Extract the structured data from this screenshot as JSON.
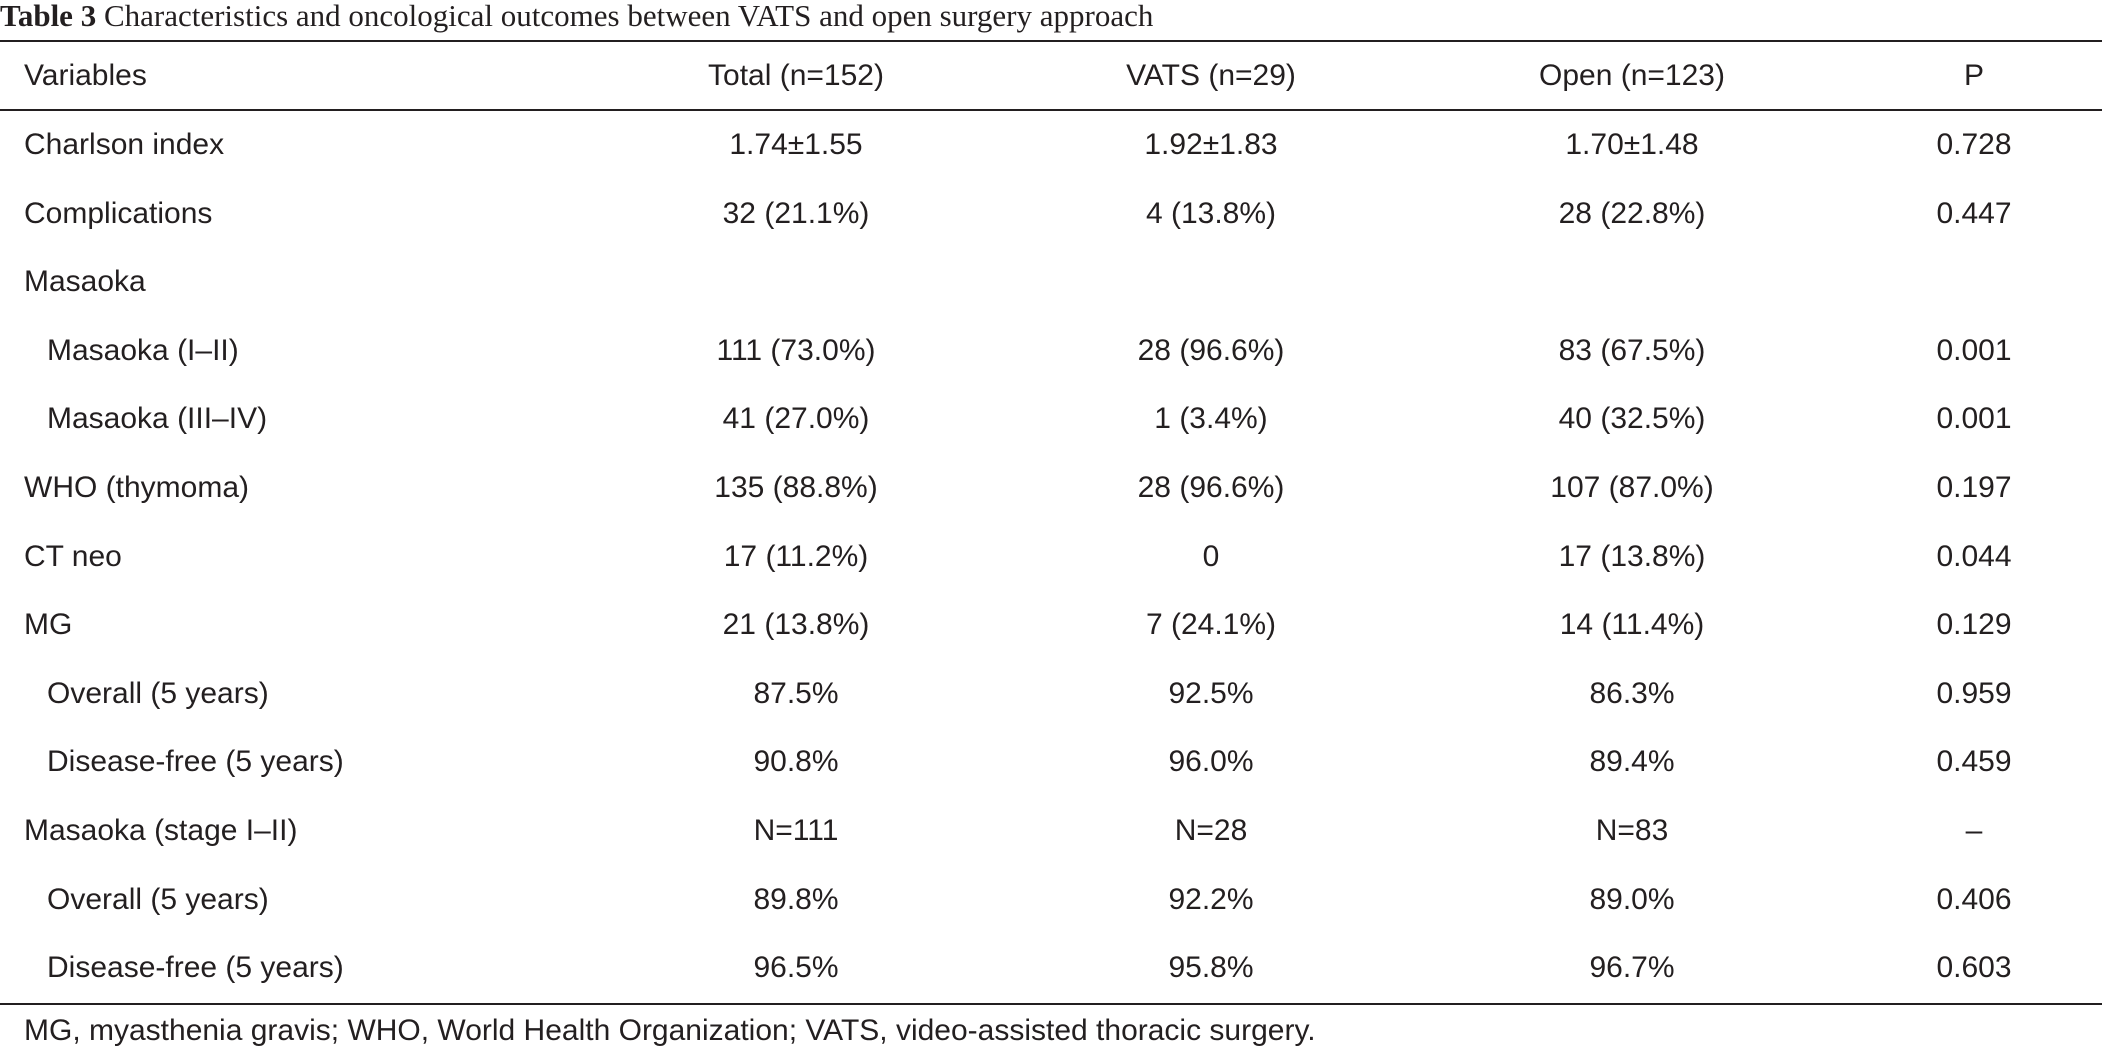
{
  "title": {
    "label": "Table 3",
    "text": " Characteristics and oncological outcomes between VATS and open surgery approach"
  },
  "header": {
    "variables": "Variables",
    "total": "Total (n=152)",
    "vats": "VATS (n=29)",
    "open": "Open (n=123)",
    "p": "P"
  },
  "rows": [
    {
      "variable": "Charlson index",
      "total": "1.74±1.55",
      "vats": "1.92±1.83",
      "open": "1.70±1.48",
      "p": "0.728",
      "indent": false
    },
    {
      "variable": "Complications",
      "total": "32 (21.1%)",
      "vats": "4 (13.8%)",
      "open": "28 (22.8%)",
      "p": "0.447",
      "indent": false
    },
    {
      "variable": "Masaoka",
      "total": "",
      "vats": "",
      "open": "",
      "p": "",
      "indent": false
    },
    {
      "variable": "Masaoka (I–II)",
      "total": "111 (73.0%)",
      "vats": "28 (96.6%)",
      "open": "83 (67.5%)",
      "p": "0.001",
      "indent": true
    },
    {
      "variable": "Masaoka (III–IV)",
      "total": "41 (27.0%)",
      "vats": "1 (3.4%)",
      "open": "40 (32.5%)",
      "p": "0.001",
      "indent": true
    },
    {
      "variable": "WHO (thymoma)",
      "total": "135 (88.8%)",
      "vats": "28 (96.6%)",
      "open": "107 (87.0%)",
      "p": "0.197",
      "indent": false
    },
    {
      "variable": "CT neo",
      "total": "17 (11.2%)",
      "vats": "0",
      "open": "17 (13.8%)",
      "p": "0.044",
      "indent": false
    },
    {
      "variable": "MG",
      "total": "21 (13.8%)",
      "vats": "7 (24.1%)",
      "open": "14 (11.4%)",
      "p": "0.129",
      "indent": false
    },
    {
      "variable": "Overall (5 years)",
      "total": "87.5%",
      "vats": "92.5%",
      "open": "86.3%",
      "p": "0.959",
      "indent": true
    },
    {
      "variable": "Disease-free (5 years)",
      "total": "90.8%",
      "vats": "96.0%",
      "open": "89.4%",
      "p": "0.459",
      "indent": true
    },
    {
      "variable": "Masaoka (stage I–II)",
      "total": "N=111",
      "vats": "N=28",
      "open": "N=83",
      "p": "–",
      "indent": false
    },
    {
      "variable": "Overall (5 years)",
      "total": "89.8%",
      "vats": "92.2%",
      "open": "89.0%",
      "p": "0.406",
      "indent": true
    },
    {
      "variable": "Disease-free (5 years)",
      "total": "96.5%",
      "vats": "95.8%",
      "open": "96.7%",
      "p": "0.603",
      "indent": true
    }
  ],
  "footnote": "MG, myasthenia gravis; WHO, World Health Organization; VATS, video-assisted thoracic surgery."
}
